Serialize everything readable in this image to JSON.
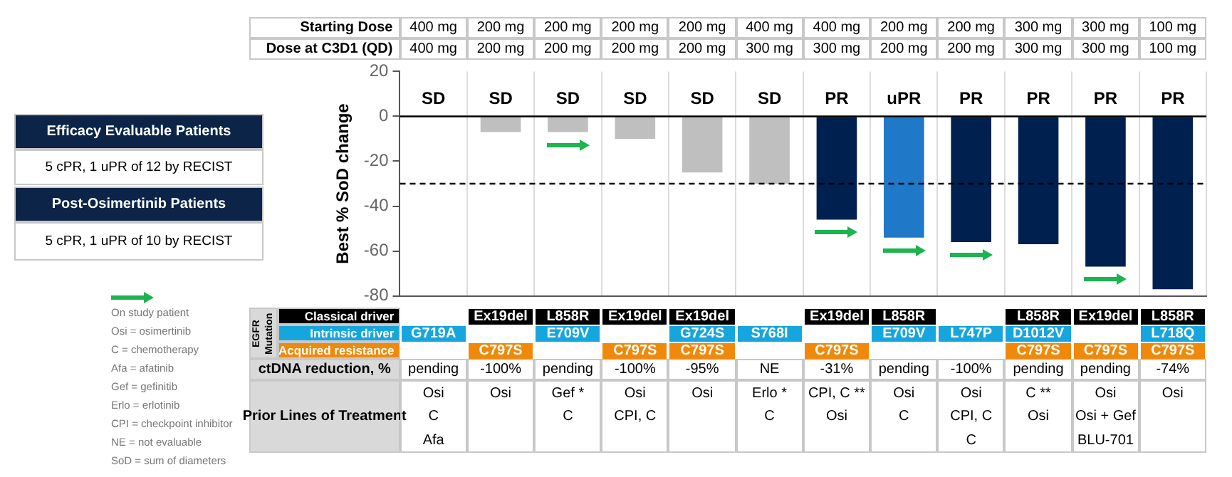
{
  "chart_data": {
    "type": "bar",
    "ylabel": "Best % SoD change",
    "categories": [
      null,
      null,
      null,
      null,
      null,
      null,
      null,
      null,
      null,
      null,
      null,
      null
    ],
    "values": [
      0,
      -7,
      -7,
      -10,
      -25,
      -30,
      -46,
      -54,
      -56,
      -57,
      -67,
      -77
    ],
    "colors": [
      "#bfbfbf",
      "#bfbfbf",
      "#bfbfbf",
      "#bfbfbf",
      "#bfbfbf",
      "#bfbfbf",
      "#002050",
      "#1f78c8",
      "#002050",
      "#002050",
      "#002050",
      "#002050"
    ],
    "value_labels": [
      "SD",
      "SD",
      "SD",
      "SD",
      "SD",
      "SD",
      "PR",
      "uPR",
      "PR",
      "PR",
      "PR",
      "PR"
    ],
    "ylim": [
      -80,
      20
    ],
    "yticks": [
      -80,
      -60,
      -40,
      -20,
      0,
      20
    ],
    "grid": "x",
    "tick_labels": "y",
    "legend": false,
    "ref_lines": [
      {
        "axis": "y",
        "value": -30,
        "color": "#000000",
        "line_style": "dashed"
      }
    ],
    "annotations": [
      "Efficacy Evaluable Patients",
      "5 cPR, 1 uPR of 12 by RECIST",
      "Post-Osimertinib Patients",
      "5 cPR, 1 uPR of 10 by RECIST",
      "On study patient",
      "Osi = osimertinib",
      "C = chemotherapy",
      "Afa = afatinib",
      "Gef = gefinitib",
      "Erlo = erlotinib",
      "CPI = checkpoint inhibitor",
      "NE = not evaluable",
      "SoD = sum of diameters",
      "Starting Dose",
      "400 mg",
      "200 mg",
      "200 mg",
      "200 mg",
      "200 mg",
      "400 mg",
      "400 mg",
      "200 mg",
      "200 mg",
      "300 mg",
      "300 mg",
      "100 mg",
      "Dose at C3D1 (QD)",
      "400 mg",
      "200 mg",
      "200 mg",
      "200 mg",
      "200 mg",
      "300 mg",
      "300 mg",
      "200 mg",
      "200 mg",
      "300 mg",
      "300 mg",
      "100 mg",
      "EGFR Mutation",
      "Classical driver",
      null,
      "Ex19del",
      "L858R",
      "Ex19del",
      "Ex19del",
      null,
      "Ex19del",
      "L858R",
      null,
      "L858R",
      "Ex19del",
      "L858R",
      "Intrinsic driver",
      "G719A",
      null,
      "E709V",
      null,
      "G724S",
      "S768I",
      null,
      "E709V",
      "L747P",
      "D1012V",
      null,
      "L718Q",
      "Acquired resistance",
      null,
      "C797S",
      null,
      "C797S",
      "C797S",
      null,
      "C797S",
      null,
      null,
      "C797S",
      "C797S",
      "C797S",
      "ctDNA reduction, %",
      "pending",
      "-100%",
      "pending",
      "-100%",
      "-95%",
      "NE",
      "-31%",
      "pending",
      "-100%",
      "pending",
      "pending",
      "-74%",
      "Prior Lines of Treatment",
      "Osi",
      "Osi",
      "Gef *",
      "Osi",
      "Osi",
      "Erlo *",
      "CPI, C **",
      "Osi",
      "Osi",
      "C **",
      "Osi",
      "Osi",
      "C",
      null,
      "C",
      "CPI, C",
      null,
      "C",
      "Osi",
      "C",
      "CPI, C",
      "Osi",
      "Osi + Gef",
      null,
      "Afa",
      null,
      null,
      null,
      null,
      null,
      null,
      null,
      "C",
      null,
      "BLU-701",
      null
    ]
  }
}
